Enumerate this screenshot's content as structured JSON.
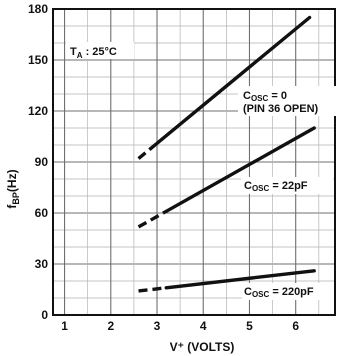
{
  "chart_data": {
    "type": "line",
    "title": "",
    "xlabel": "V⁺ (VOLTS)",
    "ylabel": "f",
    "ylabel_sub": "BP",
    "ylabel_unit": "(Hz)",
    "xlim": [
      0.75,
      6.85
    ],
    "ylim": [
      0,
      180
    ],
    "x_ticks": [
      1,
      2,
      3,
      4,
      5,
      6
    ],
    "y_ticks": [
      0,
      30,
      60,
      90,
      120,
      150,
      180
    ],
    "grid": true,
    "legend": "none",
    "annotations": {
      "ta": {
        "main": "T",
        "sub": "A",
        "rest": " : 25°C"
      },
      "c0_line1": {
        "main": "C",
        "sub": "OSC",
        "rest": " = 0"
      },
      "c0_line2": "(PIN 36 OPEN)",
      "c22": {
        "main": "C",
        "sub": "OSC",
        "rest": " = 22pF"
      },
      "c220": {
        "main": "C",
        "sub": "OSC",
        "rest": " = 220pF"
      }
    },
    "series": [
      {
        "label": "COSC = 0 (PIN 36 OPEN)",
        "dash_x": [
          2.6,
          3.0
        ],
        "solid": [
          [
            3.0,
            101
          ],
          [
            6.3,
            175
          ]
        ]
      },
      {
        "label": "COSC = 22pF",
        "dash_x": [
          2.6,
          3.2
        ],
        "solid": [
          [
            3.2,
            61
          ],
          [
            6.4,
            110
          ]
        ]
      },
      {
        "label": "COSC = 220pF",
        "dash_x": [
          2.6,
          3.2
        ],
        "solid": [
          [
            3.2,
            16
          ],
          [
            6.4,
            26
          ]
        ]
      }
    ],
    "line_color": "#111111"
  }
}
